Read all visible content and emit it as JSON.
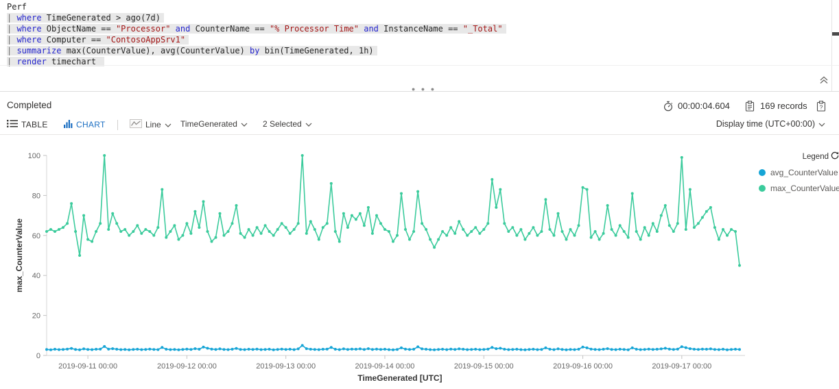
{
  "editor": {
    "lines": [
      {
        "highlight": false,
        "segments": [
          {
            "t": "Perf",
            "s": "plain"
          }
        ]
      },
      {
        "highlight": true,
        "segments": [
          {
            "t": "| ",
            "s": "pipe"
          },
          {
            "t": "where",
            "s": "kw"
          },
          {
            "t": " TimeGenerated > ago(7d)",
            "s": "plain"
          }
        ]
      },
      {
        "highlight": true,
        "segments": [
          {
            "t": "| ",
            "s": "pipe"
          },
          {
            "t": "where",
            "s": "kw"
          },
          {
            "t": " ObjectName == ",
            "s": "plain"
          },
          {
            "t": "\"Processor\"",
            "s": "str"
          },
          {
            "t": " ",
            "s": "plain"
          },
          {
            "t": "and",
            "s": "kw"
          },
          {
            "t": " CounterName == ",
            "s": "plain"
          },
          {
            "t": "\"% Processor Time\"",
            "s": "str"
          },
          {
            "t": " ",
            "s": "plain"
          },
          {
            "t": "and",
            "s": "kw"
          },
          {
            "t": " InstanceName == ",
            "s": "plain"
          },
          {
            "t": "\"_Total\"",
            "s": "str"
          }
        ]
      },
      {
        "highlight": true,
        "segments": [
          {
            "t": "| ",
            "s": "pipe"
          },
          {
            "t": "where",
            "s": "kw"
          },
          {
            "t": " Computer == ",
            "s": "plain"
          },
          {
            "t": "\"ContosoAppSrv1\"",
            "s": "str"
          }
        ]
      },
      {
        "highlight": true,
        "segments": [
          {
            "t": "| ",
            "s": "pipe"
          },
          {
            "t": "summarize",
            "s": "kw"
          },
          {
            "t": " max(CounterValue), avg(CounterValue) ",
            "s": "plain"
          },
          {
            "t": "by",
            "s": "kw"
          },
          {
            "t": " bin(TimeGenerated, 1h)",
            "s": "plain"
          }
        ]
      },
      {
        "highlight": true,
        "segments": [
          {
            "t": "| ",
            "s": "pipe"
          },
          {
            "t": "render",
            "s": "kw"
          },
          {
            "t": " timechart ",
            "s": "plain"
          }
        ]
      }
    ]
  },
  "results": {
    "status": "Completed",
    "duration": "00:00:04.604",
    "records": "169 records"
  },
  "toolbar": {
    "table_label": "TABLE",
    "chart_label": "CHART",
    "chart_type": "Line",
    "x_field": "TimeGenerated",
    "series_selected": "2 Selected",
    "display_time": "Display time (UTC+00:00)"
  },
  "legend": {
    "title": "Legend",
    "items": [
      {
        "label": "avg_CounterValue",
        "color": "#16a5d6"
      },
      {
        "label": "max_CounterValue",
        "color": "#3bcb9c"
      }
    ]
  },
  "chart_data": {
    "type": "line",
    "xlabel": "TimeGenerated [UTC]",
    "ylabel": "max_CounterValue",
    "ylim": [
      0,
      100
    ],
    "y_ticks": [
      0,
      20,
      40,
      60,
      80,
      100
    ],
    "grid": false,
    "legend_position": "right",
    "x_start": "2019-09-10 14:00",
    "x_interval": "1h",
    "point_count": 169,
    "x_tick_indices": [
      10,
      34,
      58,
      82,
      106,
      130,
      154
    ],
    "x_tick_labels": [
      "2019-09-11 00:00",
      "2019-09-12 00:00",
      "2019-09-13 00:00",
      "2019-09-14 00:00",
      "2019-09-15 00:00",
      "2019-09-16 00:00",
      "2019-09-17 00:00"
    ],
    "series": [
      {
        "name": "max_CounterValue",
        "color": "#3bcb9c",
        "values": [
          62,
          63,
          62,
          63,
          64,
          66,
          76,
          62,
          50,
          70,
          58,
          57,
          62,
          66,
          100,
          63,
          71,
          66,
          62,
          63,
          60,
          62,
          65,
          61,
          63,
          62,
          60,
          64,
          83,
          59,
          62,
          65,
          58,
          60,
          66,
          61,
          72,
          64,
          77,
          62,
          57,
          59,
          71,
          60,
          62,
          66,
          75,
          61,
          59,
          63,
          60,
          64,
          61,
          65,
          62,
          60,
          63,
          66,
          64,
          61,
          63,
          66,
          100,
          61,
          67,
          63,
          58,
          64,
          66,
          86,
          62,
          57,
          71,
          64,
          70,
          68,
          71,
          65,
          74,
          61,
          70,
          66,
          63,
          62,
          57,
          60,
          81,
          63,
          58,
          62,
          82,
          66,
          63,
          58,
          54,
          58,
          62,
          60,
          64,
          61,
          67,
          63,
          60,
          62,
          64,
          61,
          63,
          66,
          88,
          74,
          83,
          66,
          62,
          64,
          60,
          63,
          58,
          61,
          64,
          60,
          62,
          78,
          63,
          60,
          71,
          62,
          58,
          63,
          60,
          65,
          84,
          83,
          59,
          62,
          58,
          61,
          75,
          63,
          60,
          65,
          62,
          59,
          81,
          62,
          58,
          64,
          60,
          66,
          62,
          70,
          75,
          65,
          62,
          66,
          99,
          63,
          83,
          64,
          66,
          69,
          72,
          74,
          64,
          58,
          63,
          60,
          63,
          62,
          45
        ]
      },
      {
        "name": "avg_CounterValue",
        "color": "#16a5d6",
        "values": [
          3,
          2.8,
          3.1,
          2.9,
          3,
          3.2,
          3.5,
          3,
          2.8,
          3.3,
          3,
          2.9,
          3.1,
          3.2,
          4.5,
          3.2,
          3.4,
          3.1,
          2.9,
          3,
          2.8,
          3,
          3.1,
          2.9,
          3,
          3.2,
          3,
          2.9,
          4,
          3.1,
          2.9,
          3,
          2.8,
          3,
          3.2,
          3,
          3.4,
          3.1,
          4.2,
          3.6,
          3.2,
          3,
          3.3,
          3,
          2.9,
          3.1,
          3.5,
          3,
          2.9,
          3.1,
          3,
          3.2,
          2.9,
          3,
          3.1,
          2.8,
          3,
          3.2,
          3,
          3.1,
          2.9,
          3.3,
          5,
          3.4,
          3.1,
          3,
          2.9,
          3.1,
          3.2,
          4,
          3.1,
          2.9,
          3.3,
          3,
          3.2,
          3.1,
          3.3,
          3,
          3.4,
          3,
          3.2,
          3,
          3.1,
          2.9,
          2.8,
          3,
          3.8,
          3.2,
          3,
          3.1,
          4.3,
          3.3,
          3.1,
          2.9,
          2.8,
          3,
          3.1,
          2.9,
          3.2,
          3,
          3.3,
          3.1,
          2.9,
          3,
          3.1,
          2.9,
          3,
          3.2,
          4,
          3.4,
          3.6,
          3.1,
          2.9,
          3,
          3.1,
          2.9,
          2.8,
          3,
          3.1,
          2.9,
          3,
          3.8,
          3.1,
          2.9,
          3.3,
          3,
          2.8,
          3,
          2.9,
          3.1,
          4.2,
          3.8,
          3.2,
          3,
          2.9,
          3.1,
          3.4,
          3,
          2.9,
          3.1,
          3,
          2.8,
          3.8,
          3.1,
          2.9,
          3,
          3.2,
          3,
          3.1,
          3.3,
          3.6,
          3.2,
          3,
          3.2,
          4.4,
          3.9,
          3.4,
          3.1,
          3,
          3.2,
          3.1,
          3.3,
          3,
          2.9,
          3.1,
          2.8,
          3,
          3.1,
          3
        ]
      }
    ]
  }
}
